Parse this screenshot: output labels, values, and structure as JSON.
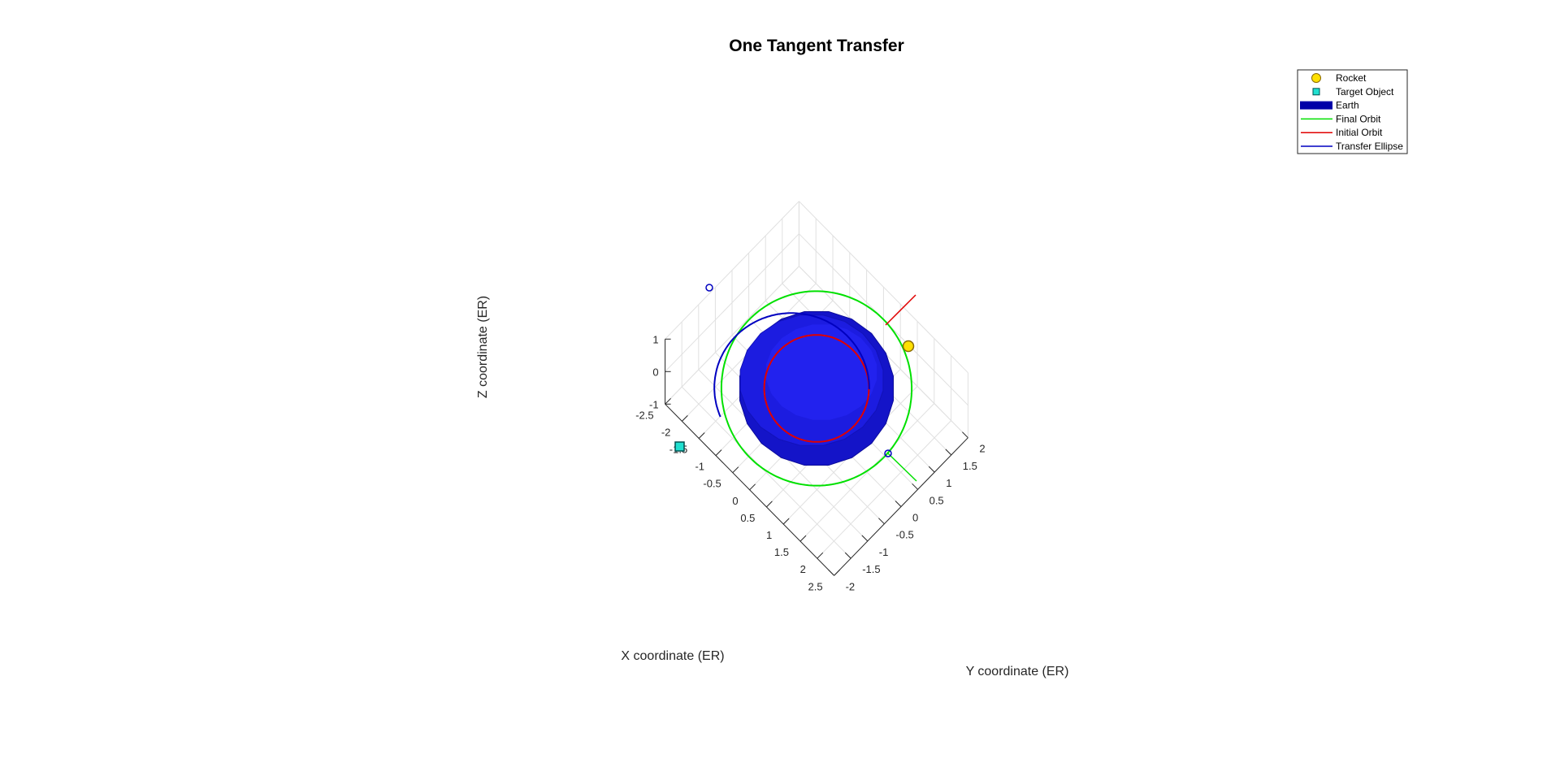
{
  "chart_data": {
    "type": "line",
    "title": "One Tangent Transfer",
    "xlabel": "X coordinate (ER)",
    "ylabel": "Y coordinate (ER)",
    "zlabel": "Z coordinate (ER)",
    "xlim": [
      -2.5,
      2.5
    ],
    "ylim": [
      -2,
      2
    ],
    "zlim": [
      -1,
      1
    ],
    "xticks": [
      "-2.5",
      "-2",
      "-1.5",
      "-1",
      "-0.5",
      "0",
      "0.5",
      "1",
      "1.5",
      "2",
      "2.5"
    ],
    "yticks": [
      "-2",
      "-1.5",
      "-1",
      "-0.5",
      "0",
      "0.5",
      "1",
      "1.5",
      "2"
    ],
    "zticks": [
      "-1",
      "0",
      "1"
    ],
    "grid": true,
    "legend_position": "top-right",
    "legend": [
      {
        "label": "Rocket",
        "kind": "marker-circle",
        "color": "#FFE000"
      },
      {
        "label": "Target Object",
        "kind": "marker-square",
        "color": "#20E0D0"
      },
      {
        "label": "Earth",
        "kind": "patch",
        "color": "#0000A8"
      },
      {
        "label": "Final Orbit",
        "kind": "line",
        "color": "#00E000"
      },
      {
        "label": "Initial Orbit",
        "kind": "line",
        "color": "#E00000"
      },
      {
        "label": "Transfer Ellipse",
        "kind": "line",
        "color": "#0000C0"
      }
    ],
    "series": [
      {
        "name": "Initial Orbit",
        "radius": 1.1
      },
      {
        "name": "Final Orbit",
        "radius": 2.0
      },
      {
        "name": "Transfer Ellipse",
        "arc_start_deg": 44,
        "arc_end_deg": 241
      },
      {
        "name": "Earth",
        "radius": 1.0
      }
    ],
    "points": {
      "rocket": {
        "x": -0.2,
        "y": 1.14,
        "z": 0
      },
      "target": {
        "x": 0.17,
        "y": -1.99,
        "z": 0
      }
    }
  }
}
